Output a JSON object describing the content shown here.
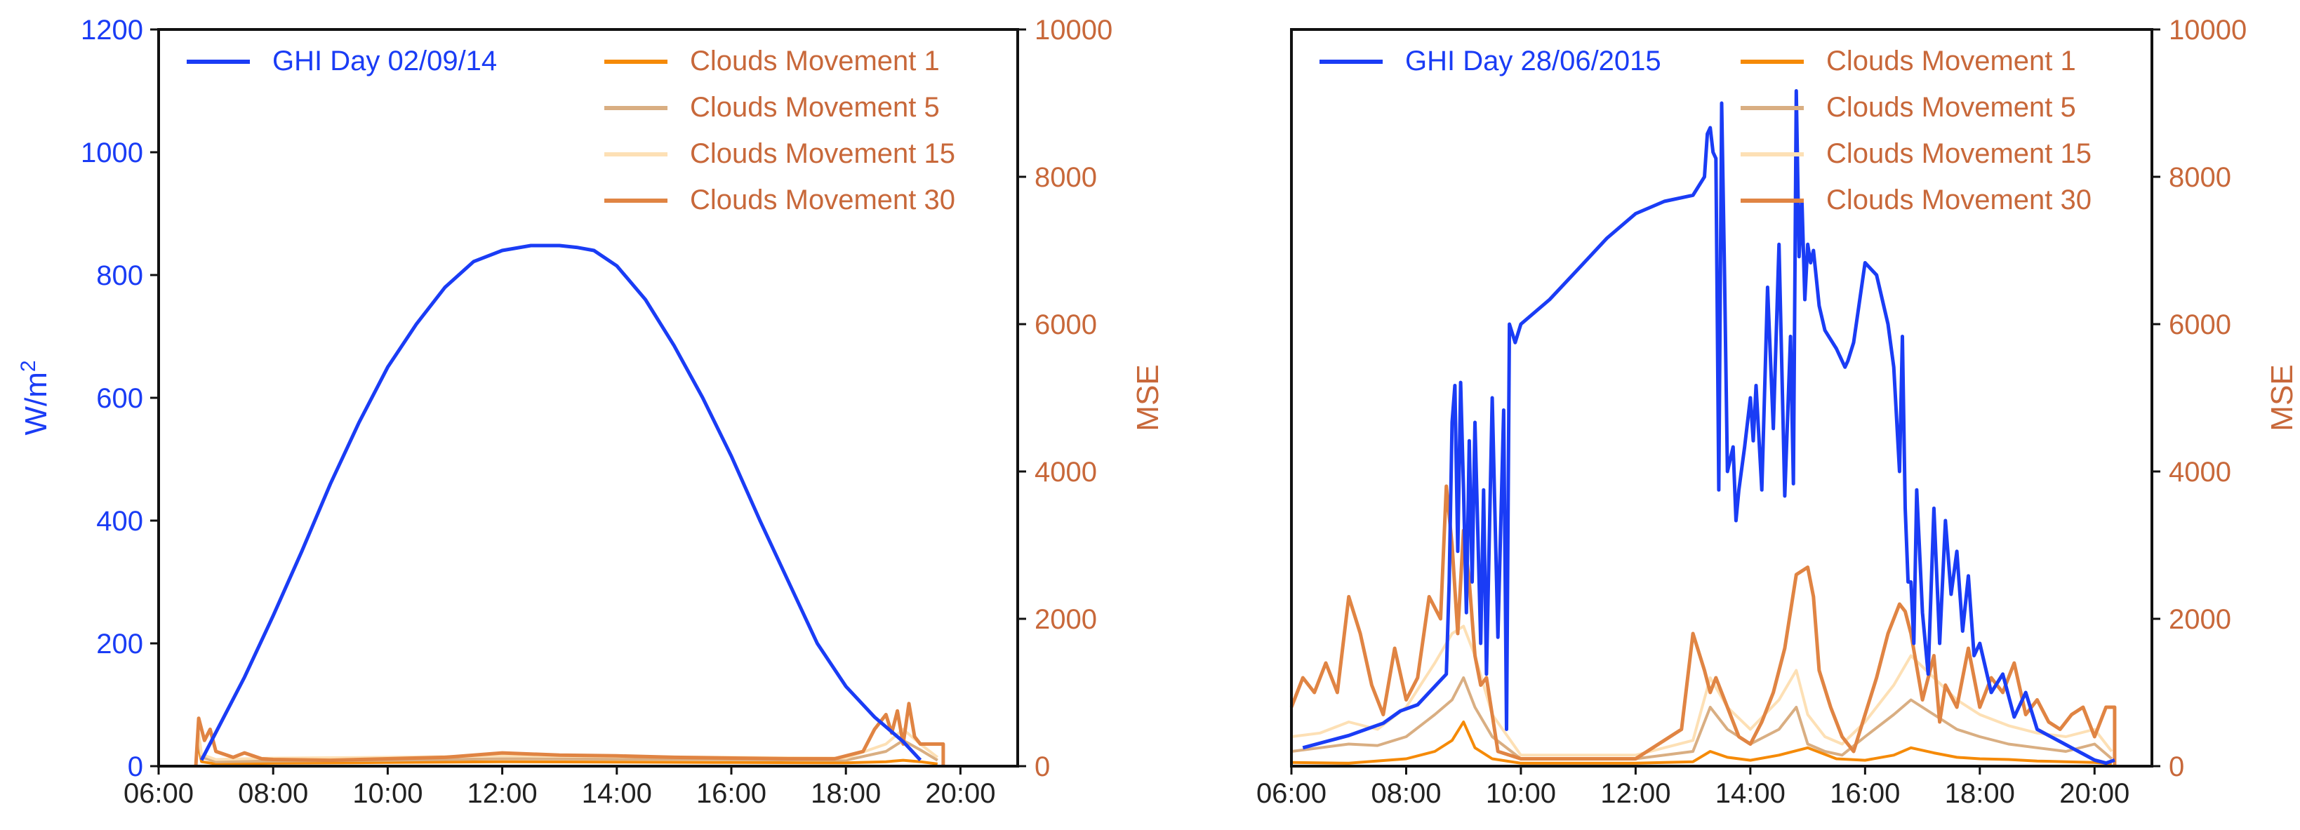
{
  "colors": {
    "ghi": "#1a3cf5",
    "mse_axis": "#c8683a",
    "cm1": "#f58a07",
    "cm5": "#d9ae82",
    "cm15": "#fde0b5",
    "cm30": "#e08443",
    "frame": "#111111"
  },
  "chart_data": [
    {
      "type": "line",
      "ylabel_left": "W/m",
      "ylabel_left_sup": "2",
      "ylabel_right": "MSE",
      "grid": false,
      "legend_placement": "top",
      "x_ticks": [
        "06:00",
        "08:00",
        "10:00",
        "12:00",
        "14:00",
        "16:00",
        "18:00",
        "20:00"
      ],
      "x_range_hours": [
        6,
        21
      ],
      "y_left_ticks": [
        "0",
        "200",
        "400",
        "600",
        "800",
        "1000",
        "1200"
      ],
      "y_left_range": [
        0,
        1200
      ],
      "y_right_ticks": [
        "0",
        "2000",
        "4000",
        "6000",
        "8000",
        "10000"
      ],
      "y_right_range": [
        0,
        10000
      ],
      "legend_left": [
        "GHI Day 02/09/14"
      ],
      "legend_right": [
        "Clouds Movement 1",
        "Clouds Movement 5",
        "Clouds Movement 15",
        "Clouds Movement 30"
      ],
      "ghi": {
        "name": "GHI Day 02/09/14",
        "x": [
          6.75,
          7.5,
          8.0,
          8.5,
          9.0,
          9.5,
          10.0,
          10.5,
          11.0,
          11.5,
          12.0,
          12.5,
          13.0,
          13.3,
          13.6,
          14.0,
          14.5,
          15.0,
          15.5,
          16.0,
          16.5,
          17.0,
          17.5,
          18.0,
          18.5,
          19.0,
          19.3
        ],
        "y": [
          10,
          145,
          245,
          350,
          460,
          560,
          650,
          720,
          780,
          822,
          840,
          848,
          848,
          845,
          840,
          815,
          760,
          685,
          600,
          505,
          400,
          300,
          200,
          130,
          80,
          40,
          10
        ]
      },
      "mse_series": [
        {
          "name": "Clouds Movement 1",
          "x": [
            6.7,
            6.75,
            7.0,
            8.0,
            10.0,
            12.0,
            14.0,
            16.0,
            18.0,
            18.7,
            19.0,
            19.3,
            19.6
          ],
          "y": [
            250,
            60,
            30,
            40,
            50,
            60,
            55,
            50,
            45,
            60,
            80,
            60,
            30
          ]
        },
        {
          "name": "Clouds Movement 5",
          "x": [
            6.7,
            6.75,
            7.0,
            8.0,
            10.0,
            12.0,
            14.0,
            16.0,
            18.0,
            18.7,
            19.0,
            19.3,
            19.6
          ],
          "y": [
            350,
            120,
            60,
            70,
            80,
            100,
            95,
            90,
            80,
            200,
            350,
            220,
            80
          ]
        },
        {
          "name": "Clouds Movement 15",
          "x": [
            6.7,
            6.75,
            7.0,
            8.0,
            10.0,
            12.0,
            14.0,
            16.0,
            18.0,
            18.7,
            19.0,
            19.3,
            19.6
          ],
          "y": [
            450,
            160,
            90,
            110,
            120,
            140,
            130,
            120,
            110,
            300,
            500,
            300,
            120
          ]
        },
        {
          "name": "Clouds Movement 30",
          "x": [
            6.65,
            6.7,
            6.8,
            6.9,
            7.0,
            7.3,
            7.5,
            7.8,
            8.0,
            9.0,
            10.0,
            11.0,
            12.0,
            13.0,
            14.0,
            15.0,
            16.0,
            17.0,
            17.8,
            18.3,
            18.5,
            18.7,
            18.8,
            18.9,
            19.0,
            19.1,
            19.2,
            19.3,
            19.7,
            19.7
          ],
          "y": [
            0,
            650,
            350,
            500,
            200,
            120,
            180,
            100,
            90,
            80,
            100,
            120,
            180,
            150,
            140,
            120,
            110,
            100,
            100,
            200,
            500,
            700,
            450,
            750,
            300,
            850,
            400,
            300,
            300,
            0
          ]
        }
      ]
    },
    {
      "type": "line",
      "ylabel_right": "MSE",
      "grid": false,
      "legend_placement": "top",
      "x_ticks": [
        "06:00",
        "08:00",
        "10:00",
        "12:00",
        "14:00",
        "16:00",
        "18:00",
        "20:00"
      ],
      "x_range_hours": [
        6,
        21
      ],
      "y_left_range": [
        0,
        1200
      ],
      "y_right_ticks": [
        "0",
        "2000",
        "4000",
        "6000",
        "8000",
        "10000"
      ],
      "y_right_range": [
        0,
        10000
      ],
      "legend_left": [
        "GHI Day 28/06/2015"
      ],
      "legend_right": [
        "Clouds Movement 1",
        "Clouds Movement 5",
        "Clouds Movement 15",
        "Clouds Movement 30"
      ],
      "ghi": {
        "name": "GHI Day 28/06/2015",
        "x": [
          6.2,
          6.6,
          7.0,
          7.3,
          7.6,
          7.9,
          8.2,
          8.5,
          8.7,
          8.75,
          8.8,
          8.85,
          8.9,
          8.95,
          9.0,
          9.05,
          9.1,
          9.15,
          9.2,
          9.3,
          9.35,
          9.4,
          9.5,
          9.55,
          9.6,
          9.7,
          9.75,
          9.8,
          9.9,
          10.0,
          10.5,
          11.0,
          11.5,
          12.0,
          12.5,
          13.0,
          13.2,
          13.25,
          13.3,
          13.35,
          13.4,
          13.45,
          13.5,
          13.55,
          13.6,
          13.7,
          13.75,
          13.8,
          13.9,
          14.0,
          14.05,
          14.1,
          14.2,
          14.3,
          14.4,
          14.5,
          14.6,
          14.7,
          14.75,
          14.8,
          14.85,
          14.9,
          14.95,
          15.0,
          15.05,
          15.1,
          15.2,
          15.3,
          15.5,
          15.6,
          15.65,
          15.7,
          15.8,
          16.0,
          16.2,
          16.4,
          16.5,
          16.6,
          16.65,
          16.7,
          16.75,
          16.8,
          16.85,
          16.9,
          17.0,
          17.1,
          17.2,
          17.3,
          17.4,
          17.5,
          17.6,
          17.7,
          17.8,
          17.9,
          18.0,
          18.2,
          18.4,
          18.6,
          18.8,
          19.0,
          19.2,
          19.4,
          19.6,
          19.8,
          20.0,
          20.2,
          20.35
        ],
        "y": [
          30,
          40,
          50,
          60,
          70,
          90,
          100,
          130,
          150,
          300,
          560,
          620,
          350,
          625,
          450,
          250,
          530,
          300,
          560,
          200,
          450,
          150,
          600,
          400,
          210,
          580,
          60,
          720,
          690,
          720,
          760,
          810,
          860,
          900,
          920,
          930,
          960,
          1030,
          1040,
          1000,
          990,
          450,
          1080,
          800,
          480,
          520,
          400,
          450,
          520,
          600,
          530,
          620,
          450,
          780,
          550,
          850,
          440,
          700,
          460,
          1100,
          830,
          920,
          760,
          850,
          820,
          840,
          750,
          710,
          680,
          660,
          650,
          660,
          690,
          820,
          800,
          720,
          650,
          480,
          700,
          420,
          300,
          300,
          200,
          450,
          250,
          150,
          420,
          200,
          400,
          280,
          350,
          220,
          310,
          180,
          200,
          120,
          150,
          80,
          120,
          60,
          50,
          40,
          30,
          20,
          10,
          5,
          10
        ]
      },
      "mse_series": [
        {
          "name": "Clouds Movement 1",
          "x": [
            6.0,
            7.0,
            8.0,
            8.5,
            8.8,
            9.0,
            9.2,
            9.5,
            10.0,
            12.0,
            13.0,
            13.3,
            13.6,
            14.0,
            14.5,
            15.0,
            15.5,
            16.0,
            16.5,
            16.8,
            17.2,
            17.6,
            18.0,
            18.5,
            19.0,
            19.5,
            20.0,
            20.3
          ],
          "y": [
            50,
            40,
            100,
            200,
            350,
            600,
            250,
            100,
            40,
            40,
            60,
            200,
            120,
            80,
            150,
            250,
            100,
            80,
            150,
            250,
            180,
            120,
            100,
            90,
            70,
            60,
            50,
            30
          ]
        },
        {
          "name": "Clouds Movement 5",
          "x": [
            6.0,
            6.5,
            7.0,
            7.5,
            8.0,
            8.5,
            8.8,
            9.0,
            9.2,
            9.5,
            10.0,
            12.0,
            13.0,
            13.3,
            13.6,
            14.0,
            14.5,
            14.8,
            15.0,
            15.3,
            15.6,
            16.0,
            16.5,
            16.8,
            17.2,
            17.6,
            18.0,
            18.5,
            19.0,
            19.5,
            20.0,
            20.3
          ],
          "y": [
            200,
            250,
            300,
            280,
            400,
            700,
            900,
            1200,
            800,
            400,
            100,
            100,
            200,
            800,
            500,
            300,
            500,
            800,
            300,
            200,
            150,
            400,
            700,
            900,
            700,
            500,
            400,
            300,
            250,
            200,
            300,
            100
          ]
        },
        {
          "name": "Clouds Movement 15",
          "x": [
            6.0,
            6.5,
            7.0,
            7.5,
            8.0,
            8.5,
            8.8,
            9.0,
            9.2,
            9.5,
            10.0,
            12.0,
            13.0,
            13.3,
            13.6,
            14.0,
            14.5,
            14.8,
            15.0,
            15.3,
            15.6,
            16.0,
            16.5,
            16.8,
            17.2,
            17.6,
            18.0,
            18.5,
            19.0,
            19.5,
            20.0,
            20.3
          ],
          "y": [
            400,
            450,
            600,
            500,
            800,
            1400,
            1800,
            1900,
            1500,
            700,
            150,
            150,
            350,
            1200,
            800,
            500,
            900,
            1300,
            700,
            400,
            300,
            600,
            1100,
            1500,
            1200,
            900,
            700,
            550,
            450,
            400,
            500,
            200
          ]
        },
        {
          "name": "Clouds Movement 30",
          "x": [
            6.0,
            6.2,
            6.4,
            6.6,
            6.8,
            7.0,
            7.2,
            7.4,
            7.6,
            7.8,
            8.0,
            8.2,
            8.4,
            8.6,
            8.7,
            8.8,
            8.9,
            9.0,
            9.1,
            9.2,
            9.3,
            9.4,
            9.6,
            9.8,
            10.0,
            11.0,
            12.0,
            12.8,
            13.0,
            13.2,
            13.3,
            13.4,
            13.6,
            13.8,
            14.0,
            14.2,
            14.4,
            14.6,
            14.8,
            15.0,
            15.1,
            15.2,
            15.4,
            15.6,
            15.8,
            16.0,
            16.2,
            16.4,
            16.6,
            16.7,
            16.8,
            17.0,
            17.2,
            17.3,
            17.4,
            17.6,
            17.8,
            18.0,
            18.2,
            18.4,
            18.6,
            18.8,
            19.0,
            19.2,
            19.4,
            19.6,
            19.8,
            20.0,
            20.2,
            20.35,
            20.35
          ],
          "y": [
            800,
            1200,
            1000,
            1400,
            1000,
            2300,
            1800,
            1100,
            700,
            1600,
            900,
            1200,
            2300,
            2000,
            3800,
            3000,
            1800,
            3200,
            2500,
            1500,
            1100,
            1200,
            200,
            150,
            100,
            100,
            100,
            500,
            1800,
            1300,
            1000,
            1200,
            800,
            400,
            300,
            600,
            1000,
            1600,
            2600,
            2700,
            2300,
            1300,
            800,
            400,
            200,
            700,
            1200,
            1800,
            2200,
            2100,
            1800,
            900,
            1500,
            600,
            1100,
            800,
            1600,
            800,
            1200,
            1000,
            1400,
            700,
            900,
            600,
            500,
            700,
            800,
            400,
            800,
            800,
            0
          ]
        }
      ]
    }
  ]
}
